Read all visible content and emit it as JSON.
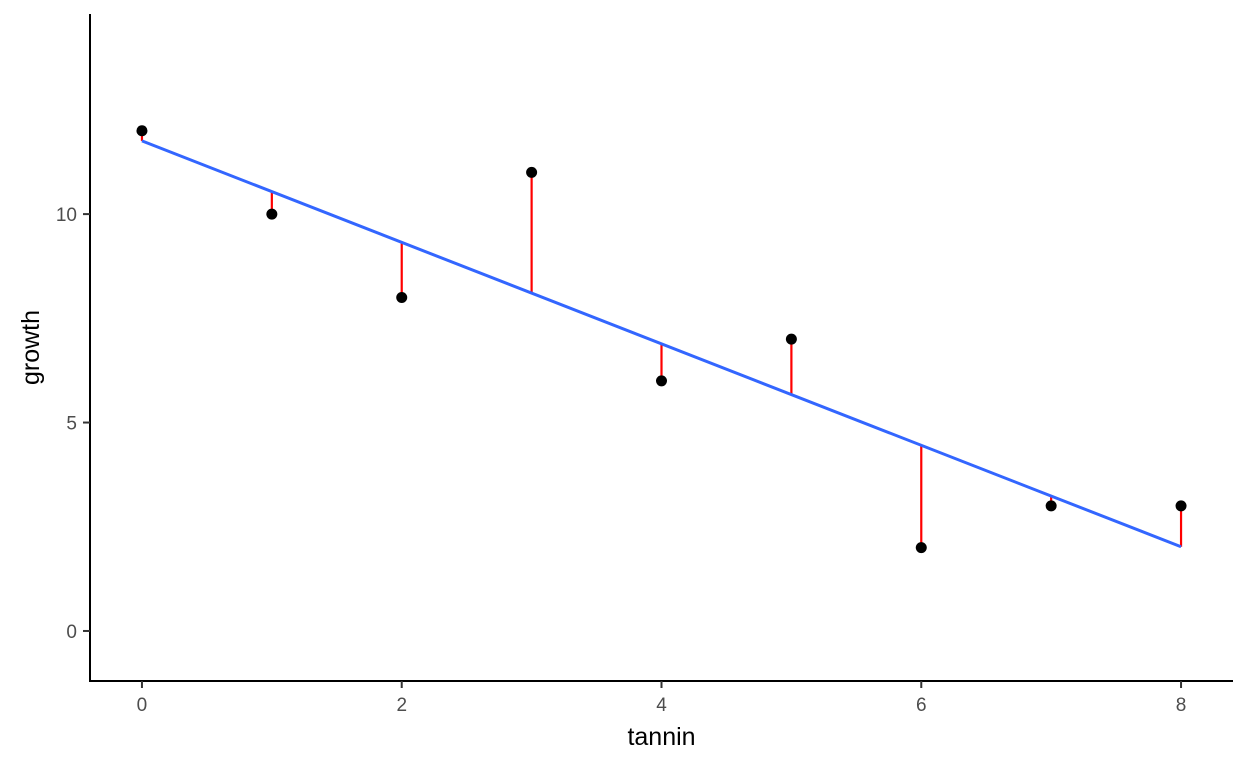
{
  "chart_data": {
    "type": "scatter",
    "title": "",
    "xlabel": "tannin",
    "ylabel": "growth",
    "xlim": [
      -0.4,
      8.4
    ],
    "ylim": [
      -1.2,
      14.8
    ],
    "x_ticks": [
      0,
      2,
      4,
      6,
      8
    ],
    "y_ticks": [
      0,
      5,
      10
    ],
    "grid": false,
    "points": [
      {
        "x": 0,
        "y": 12
      },
      {
        "x": 1,
        "y": 10
      },
      {
        "x": 2,
        "y": 8
      },
      {
        "x": 3,
        "y": 11
      },
      {
        "x": 4,
        "y": 6
      },
      {
        "x": 5,
        "y": 7
      },
      {
        "x": 6,
        "y": 2
      },
      {
        "x": 7,
        "y": 3
      },
      {
        "x": 8,
        "y": 3
      }
    ],
    "fit_line": {
      "intercept": 11.756,
      "slope": -1.217
    },
    "residual_segments": true,
    "colors": {
      "points": "#000000",
      "fit_line": "#3366ff",
      "residuals": "#ff0000",
      "axis": "#000000",
      "tick_labels": "#4d4d4d"
    }
  }
}
